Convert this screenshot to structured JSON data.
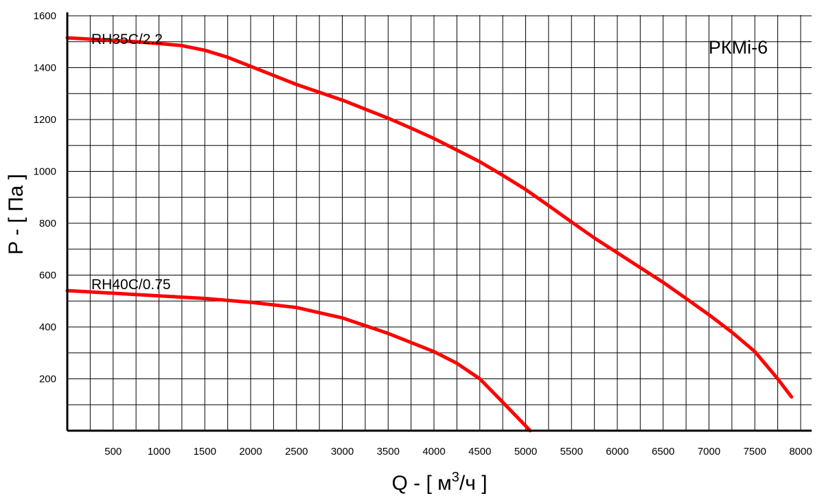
{
  "chart_data": {
    "type": "line",
    "title": "РКМi-6",
    "xlabel_prefix": "Q - [ м",
    "xlabel_sup": "3",
    "xlabel_suffix": "/ч ]",
    "ylabel": "P - [ Па ]",
    "xlim": [
      0,
      8000
    ],
    "ylim": [
      0,
      1600
    ],
    "xgrid_step": 250,
    "ygrid_step": 100,
    "grid": true,
    "xticks": [
      500,
      1000,
      1500,
      2000,
      2500,
      3000,
      3500,
      4000,
      4500,
      5000,
      5500,
      6000,
      6500,
      7000,
      7500,
      8000
    ],
    "yticks": [
      200,
      400,
      600,
      800,
      1000,
      1200,
      1400,
      1600
    ],
    "line_color": "#ff0000",
    "series": [
      {
        "name": "RH35C/2.2",
        "x": [
          0,
          250,
          500,
          750,
          1000,
          1250,
          1500,
          1750,
          2000,
          2250,
          2500,
          2750,
          3000,
          3250,
          3500,
          3750,
          4000,
          4250,
          4500,
          4750,
          5000,
          5250,
          5500,
          5750,
          6000,
          6250,
          6500,
          6750,
          7000,
          7250,
          7500,
          7750,
          7900
        ],
        "y": [
          1515,
          1510,
          1505,
          1500,
          1493,
          1485,
          1467,
          1440,
          1405,
          1370,
          1335,
          1305,
          1275,
          1240,
          1205,
          1167,
          1127,
          1082,
          1037,
          985,
          930,
          868,
          805,
          743,
          686,
          629,
          572,
          510,
          447,
          380,
          305,
          200,
          130
        ]
      },
      {
        "name": "RH40C/0.75",
        "x": [
          0,
          500,
          1000,
          1500,
          2000,
          2500,
          3000,
          3500,
          4000,
          4250,
          4500,
          4750,
          5050
        ],
        "y": [
          540,
          530,
          520,
          510,
          495,
          475,
          435,
          375,
          305,
          260,
          200,
          110,
          0
        ]
      }
    ]
  }
}
